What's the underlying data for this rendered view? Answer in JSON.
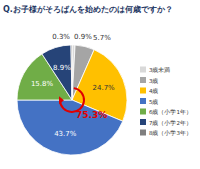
{
  "chart_data": {
    "type": "pie",
    "title": "Q.お子様がそろばんを始めたのは何歳ですか？",
    "categories": [
      "3歳未満",
      "3歳",
      "4歳",
      "5歳",
      "6歳（小学1年）",
      "7歳（小学2年）",
      "8歳（小学3年）"
    ],
    "values": [
      0.9,
      5.7,
      24.7,
      43.7,
      15.8,
      8.9,
      0.3
    ],
    "value_labels": [
      "0.9%",
      "5.7%",
      "24.7%",
      "43.7%",
      "15.8%",
      "8.9%",
      "0.3%"
    ],
    "colors": [
      "#d9d9d9",
      "#a5a5a5",
      "#ffc000",
      "#4472c4",
      "#70ad47",
      "#264478",
      "#7f7f7f"
    ],
    "data_labels": true,
    "legend": "right",
    "annotation": "75.3%"
  }
}
